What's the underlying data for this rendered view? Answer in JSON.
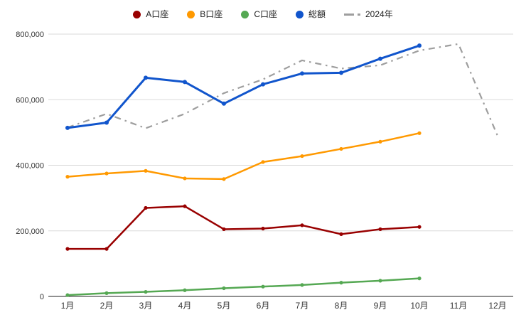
{
  "chart_data": {
    "type": "line",
    "title": "",
    "categories": [
      "1月",
      "2月",
      "3月",
      "4月",
      "5月",
      "6月",
      "7月",
      "8月",
      "9月",
      "10月",
      "11月",
      "12月"
    ],
    "series": [
      {
        "name": "A口座",
        "color": "#990000",
        "style": "solid",
        "values": [
          145000,
          145000,
          270000,
          275000,
          205000,
          207000,
          217000,
          190000,
          205000,
          212000,
          null,
          null
        ]
      },
      {
        "name": "B口座",
        "color": "#ff9900",
        "style": "solid",
        "values": [
          365000,
          375000,
          383000,
          360000,
          358000,
          410000,
          428000,
          450000,
          472000,
          498000,
          null,
          null
        ]
      },
      {
        "name": "C口座",
        "color": "#55a853",
        "style": "solid",
        "values": [
          4000,
          10000,
          14000,
          19000,
          25000,
          30000,
          35000,
          42000,
          48000,
          55000,
          null,
          null
        ]
      },
      {
        "name": "総額",
        "color": "#1155cc",
        "style": "solid",
        "values": [
          514000,
          530000,
          667000,
          654000,
          588000,
          647000,
          680000,
          682000,
          725000,
          765000,
          null,
          null
        ]
      },
      {
        "name": "2024年",
        "color": "#9e9e9e",
        "style": "dashdot",
        "values": [
          515000,
          557000,
          513000,
          557000,
          620000,
          662000,
          720000,
          695000,
          705000,
          750000,
          770000,
          490000
        ]
      }
    ],
    "xlabel": "",
    "ylabel": "",
    "ylim": [
      0,
      800000
    ],
    "y_axis": {
      "min": 0,
      "max": 800000,
      "tick_step": 200000,
      "tick_labels": [
        "0",
        "200,000",
        "400,000",
        "600,000",
        "800,000"
      ]
    },
    "grid": true,
    "legend_position": "top",
    "colors": {
      "axis_line": "#212121",
      "gridline": "#dadada",
      "tick_text": "#333333",
      "background": "#ffffff"
    }
  }
}
